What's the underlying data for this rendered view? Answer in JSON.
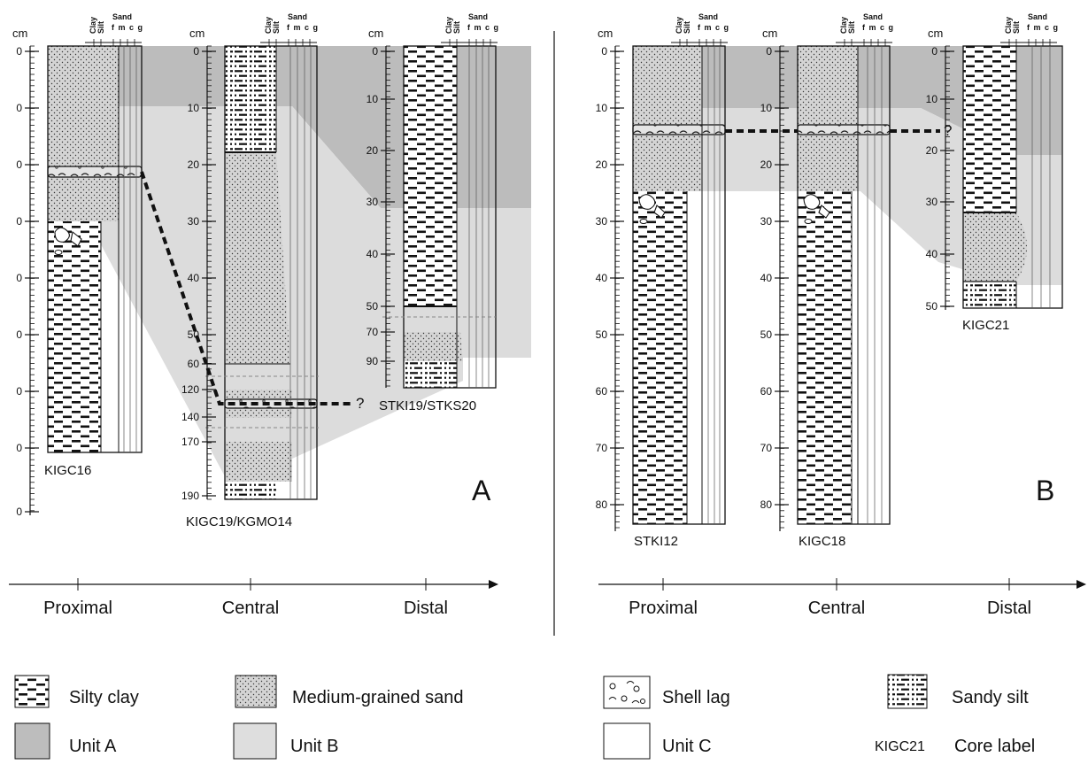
{
  "units": {
    "cm": "cm"
  },
  "column_header": {
    "clay": "Clay",
    "silt": "Silt",
    "sand": "Sand",
    "grades": "f m c g"
  },
  "panels": [
    {
      "letter": "A",
      "cores": [
        {
          "label": "KIGC16",
          "ticks": [
            "0",
            "0",
            "0",
            "0",
            "0",
            "0",
            "0",
            "0",
            "0"
          ]
        },
        {
          "label": "KIGC19/KGMO14",
          "ticks": [
            "0",
            "10",
            "20",
            "30",
            "40",
            "50",
            "60",
            "120",
            "140",
            "170",
            "190"
          ]
        },
        {
          "label": "STKI19/STKS20",
          "ticks": [
            "0",
            "10",
            "20",
            "30",
            "40",
            "50",
            "70",
            "90"
          ]
        }
      ],
      "question_mark": "?",
      "axis": {
        "proximal": "Proximal",
        "central": "Central",
        "distal": "Distal"
      }
    },
    {
      "letter": "B",
      "cores": [
        {
          "label": "STKI12",
          "ticks": [
            "0",
            "10",
            "20",
            "30",
            "40",
            "50",
            "60",
            "70",
            "80"
          ]
        },
        {
          "label": "KIGC18",
          "ticks": [
            "0",
            "10",
            "20",
            "30",
            "40",
            "50",
            "60",
            "70",
            "80"
          ]
        },
        {
          "label": "KIGC21",
          "ticks": [
            "0",
            "10",
            "20",
            "30",
            "40",
            "50"
          ]
        }
      ],
      "question_mark": "?",
      "axis": {
        "proximal": "Proximal",
        "central": "Central",
        "distal": "Distal"
      }
    }
  ],
  "legend": {
    "silty_clay": "Silty clay",
    "medium_sand": "Medium-grained sand",
    "shell_lag": "Shell lag",
    "sandy_silt": "Sandy silt",
    "unit_a": "Unit A",
    "unit_b": "Unit B",
    "unit_c": "Unit C",
    "core_label_example": "KIGC21",
    "core_label_text": "Core label"
  },
  "colors": {
    "unit_a": "#bdbdbd",
    "unit_b": "#dedede",
    "unit_c": "#ffffff",
    "sand_fill": "#d6d6d6"
  }
}
